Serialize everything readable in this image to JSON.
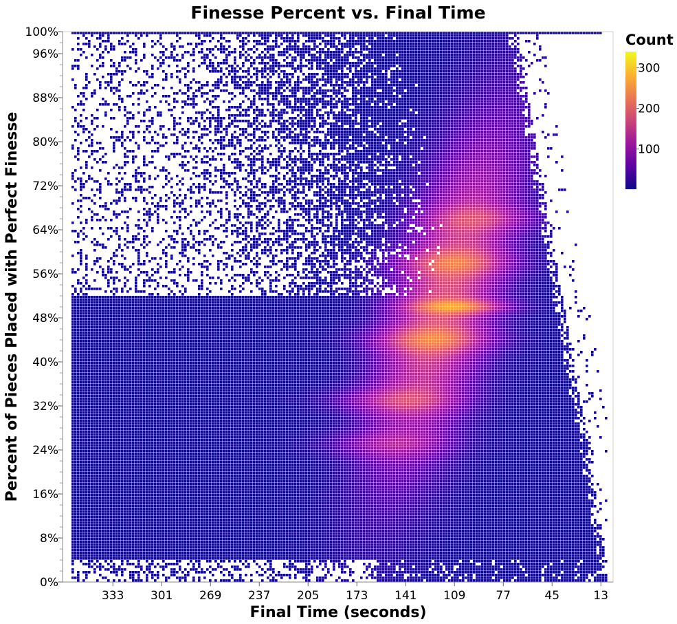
{
  "chart_data": {
    "type": "heatmap",
    "title": "Finesse Percent vs. Final Time",
    "xlabel": "Final Time (seconds)",
    "ylabel": "Percent of Pieces Placed with Perfect Finesse",
    "x_axis": {
      "reversed": true,
      "range": [
        366,
        5
      ],
      "ticks": [
        333,
        301,
        269,
        237,
        205,
        173,
        141,
        109,
        77,
        45,
        13
      ],
      "tick_labels": [
        "333",
        "301",
        "269",
        "237",
        "205",
        "173",
        "141",
        "109",
        "77",
        "45",
        "13"
      ]
    },
    "y_axis": {
      "range": [
        0,
        100
      ],
      "ticks": [
        0,
        8,
        16,
        24,
        32,
        40,
        48,
        56,
        64,
        72,
        80,
        88,
        96,
        100
      ],
      "tick_labels": [
        "0%",
        "8%",
        "16%",
        "24%",
        "32%",
        "40%",
        "48%",
        "56%",
        "64%",
        "72%",
        "80%",
        "88%",
        "96%",
        "100%"
      ]
    },
    "grid": false,
    "colorbar": {
      "title": "Count",
      "range": [
        1,
        340
      ],
      "ticks": [
        100,
        200,
        300
      ],
      "tick_labels": [
        "100",
        "200",
        "300"
      ],
      "colors": [
        "#0d0887",
        "#5b02a3",
        "#9a179b",
        "#cb4678",
        "#eb7852",
        "#fbb32f",
        "#f0f921"
      ],
      "placement": "top-right"
    },
    "density_peaks": [
      {
        "final_time": 105,
        "percent": 50,
        "count": 330
      },
      {
        "final_time": 125,
        "percent": 44,
        "count": 240
      },
      {
        "final_time": 110,
        "percent": 58,
        "count": 210
      },
      {
        "final_time": 150,
        "percent": 33,
        "count": 200
      },
      {
        "final_time": 90,
        "percent": 66,
        "count": 150
      },
      {
        "final_time": 155,
        "percent": 25,
        "count": 150
      }
    ]
  }
}
